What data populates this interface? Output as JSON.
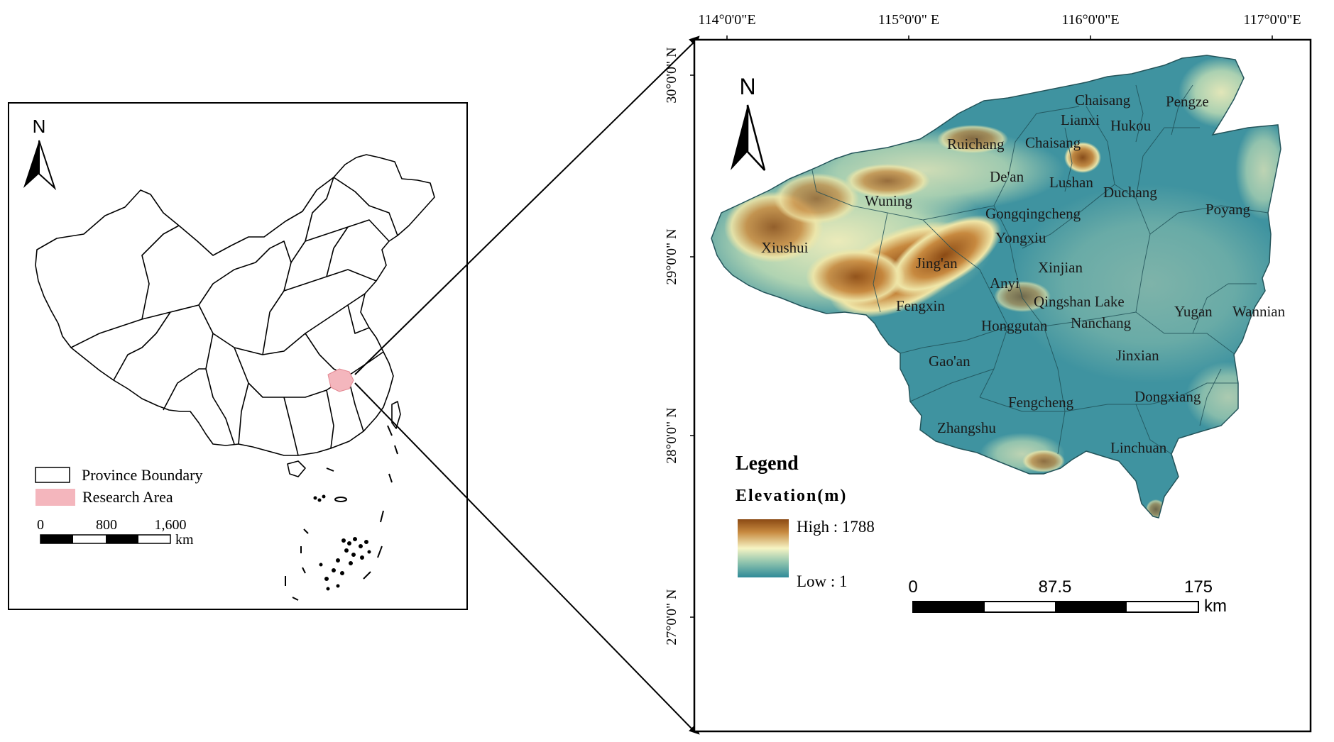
{
  "inset": {
    "north": "N",
    "legend": {
      "province_boundary": "Province Boundary",
      "research_area": "Research Area"
    },
    "scale": {
      "t0": "0",
      "t1": "800",
      "t2": "1,600",
      "unit": "km"
    },
    "colors": {
      "research_area": "#f4b6bd",
      "boundary": "#000000"
    }
  },
  "main": {
    "north": "N",
    "lon_ticks": [
      "114°0'0\"E",
      "115°0'0\" E",
      "116°0'0\"E",
      "117°0'0\"E"
    ],
    "lat_ticks": [
      "30°0'0\" N",
      "29°0'0\" N",
      "28°0'0\" N",
      "27°0'0\" N"
    ],
    "places": {
      "chaisang_n": "Chaisang",
      "pengze": "Pengze",
      "lianxi": "Lianxi",
      "hukou": "Hukou",
      "ruichang": "Ruichang",
      "chaisang_s": "Chaisang",
      "dean": "De'an",
      "lushan": "Lushan",
      "duchang": "Duchang",
      "wuning": "Wuning",
      "gongqingcheng": "Gongqingcheng",
      "poyang": "Poyang",
      "yongxiu": "Yongxiu",
      "xiushui": "Xiushui",
      "jingan": "Jing'an",
      "xinjian": "Xinjian",
      "anyi": "Anyi",
      "qingshan_lake": "Qingshan Lake",
      "fengxin": "Fengxin",
      "yugan": "Yugan",
      "wannian": "Wannian",
      "honggutan": "Honggutan",
      "nanchang": "Nanchang",
      "gaoan": "Gao'an",
      "jinxian": "Jinxian",
      "fengcheng": "Fengcheng",
      "dongxiang": "Dongxiang",
      "zhangshu": "Zhangshu",
      "linchuan": "Linchuan"
    },
    "legend": {
      "title": "Legend",
      "subtitle": "Elevation(m)",
      "high": "High : 1788",
      "low": "Low : 1",
      "high_value": 1788,
      "low_value": 1
    },
    "scale": {
      "t0": "0",
      "t1": "87.5",
      "t2": "175",
      "unit": "km"
    },
    "colors": {
      "high": "#8b4a14",
      "mid": "#f6f4c4",
      "low": "#2f8a98"
    }
  }
}
